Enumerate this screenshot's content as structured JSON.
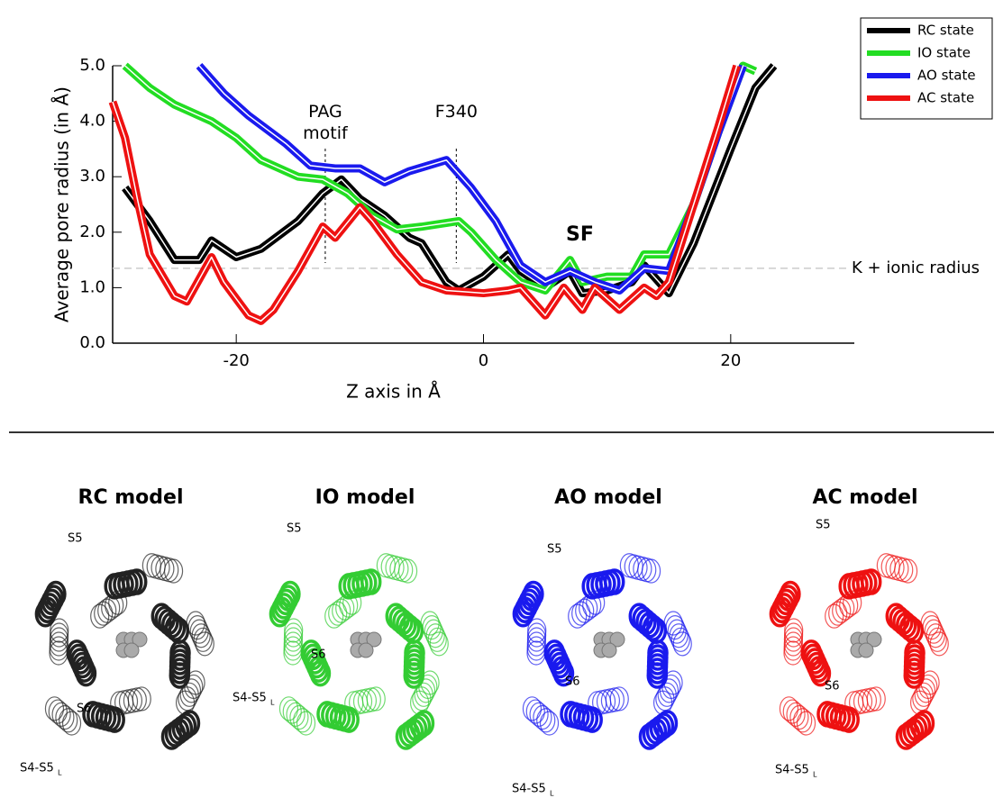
{
  "chart_data": {
    "type": "line",
    "xlabel": "Z axis in Å",
    "ylabel": "Average pore radius (in Å)",
    "xlim": [
      -30,
      30
    ],
    "ylim": [
      0,
      5
    ],
    "xticks": [
      -20,
      0,
      20
    ],
    "yticks": [
      {
        "value": 0,
        "label": "0.0"
      },
      {
        "value": 1,
        "label": "1.0"
      },
      {
        "value": 2,
        "label": "2.0"
      },
      {
        "value": 3,
        "label": "3.0"
      },
      {
        "value": 4,
        "label": "4.0"
      },
      {
        "value": 5,
        "label": "5.0"
      }
    ],
    "legend": "top-right",
    "reference_line": {
      "y": 1.35,
      "label": "K + ionic radius"
    },
    "markers": [
      {
        "x": -12.8,
        "label": "PAG\nmotif"
      },
      {
        "x": -2.2,
        "label": "F340"
      }
    ],
    "annotation": {
      "x": 7.8,
      "y": 1.95,
      "label": "SF"
    },
    "series": [
      {
        "name": "RC state",
        "color": "#000000",
        "x": [
          -29,
          -27,
          -25,
          -23,
          -22,
          -20,
          -18,
          -15,
          -13,
          -11.5,
          -10,
          -8,
          -6,
          -5,
          -3,
          -2,
          0,
          2,
          3,
          5,
          7,
          8,
          10,
          12,
          13,
          15,
          17,
          20,
          22,
          23.5
        ],
        "values": [
          2.8,
          2.2,
          1.5,
          1.5,
          1.85,
          1.55,
          1.7,
          2.2,
          2.7,
          2.95,
          2.6,
          2.3,
          1.9,
          1.8,
          1.1,
          0.95,
          1.2,
          1.6,
          1.3,
          1.0,
          1.3,
          0.9,
          0.95,
          1.1,
          1.4,
          0.9,
          1.8,
          3.5,
          4.6,
          5.0
        ]
      },
      {
        "name": "IO state",
        "color": "#22dd22",
        "x": [
          -29,
          -27,
          -25,
          -22,
          -20,
          -18,
          -15,
          -13,
          -11,
          -9,
          -7,
          -5,
          -2,
          -1,
          1,
          3,
          5,
          7,
          8,
          10,
          12,
          13,
          15,
          17,
          19,
          21,
          22
        ],
        "values": [
          5.0,
          4.6,
          4.3,
          4.0,
          3.7,
          3.3,
          3.0,
          2.95,
          2.7,
          2.3,
          2.05,
          2.1,
          2.2,
          2.0,
          1.5,
          1.1,
          0.95,
          1.5,
          1.1,
          1.2,
          1.2,
          1.6,
          1.6,
          2.5,
          3.8,
          5.0,
          4.9
        ]
      },
      {
        "name": "AO state",
        "color": "#1a1aee",
        "x": [
          -23,
          -21,
          -19,
          -16,
          -14,
          -12,
          -10,
          -8,
          -6,
          -3,
          -1,
          1,
          3,
          5,
          7,
          9,
          11,
          13,
          15,
          17,
          19,
          21
        ],
        "values": [
          5.0,
          4.5,
          4.1,
          3.6,
          3.2,
          3.15,
          3.15,
          2.9,
          3.1,
          3.3,
          2.8,
          2.2,
          1.4,
          1.1,
          1.3,
          1.1,
          0.95,
          1.35,
          1.3,
          2.5,
          3.8,
          5.0
        ]
      },
      {
        "name": "AC state",
        "color": "#ee1111",
        "x": [
          -30,
          -29,
          -28,
          -27,
          -25,
          -24,
          -22,
          -21,
          -19,
          -18,
          -17,
          -15,
          -13,
          -12,
          -10,
          -9,
          -7,
          -5,
          -3,
          0,
          2,
          3,
          5,
          6.5,
          8,
          9,
          11,
          13,
          14,
          15,
          17,
          19,
          20.5
        ],
        "values": [
          4.35,
          3.7,
          2.6,
          1.6,
          0.85,
          0.75,
          1.55,
          1.1,
          0.5,
          0.4,
          0.6,
          1.3,
          2.1,
          1.9,
          2.45,
          2.2,
          1.6,
          1.1,
          0.95,
          0.9,
          0.95,
          1.0,
          0.5,
          1.0,
          0.6,
          1.0,
          0.6,
          1.0,
          0.85,
          1.1,
          2.5,
          3.9,
          5.0
        ]
      }
    ]
  },
  "panels": [
    {
      "title": "RC model",
      "color": "#222222",
      "s5": "S5",
      "s6": "S6",
      "s45": "S4-S5",
      "sub": "L"
    },
    {
      "title": "IO model",
      "color": "#33cc33",
      "s5": "S5",
      "s6": "S6",
      "s45": "S4-S5",
      "sub": "L"
    },
    {
      "title": "AO model",
      "color": "#1a1aee",
      "s5": "S5",
      "s6": "S6",
      "s45": "S4-S5",
      "sub": "L"
    },
    {
      "title": "AC model",
      "color": "#ee1111",
      "s5": "S5",
      "s6": "S6",
      "s45": "S4-S5",
      "sub": "L"
    }
  ]
}
